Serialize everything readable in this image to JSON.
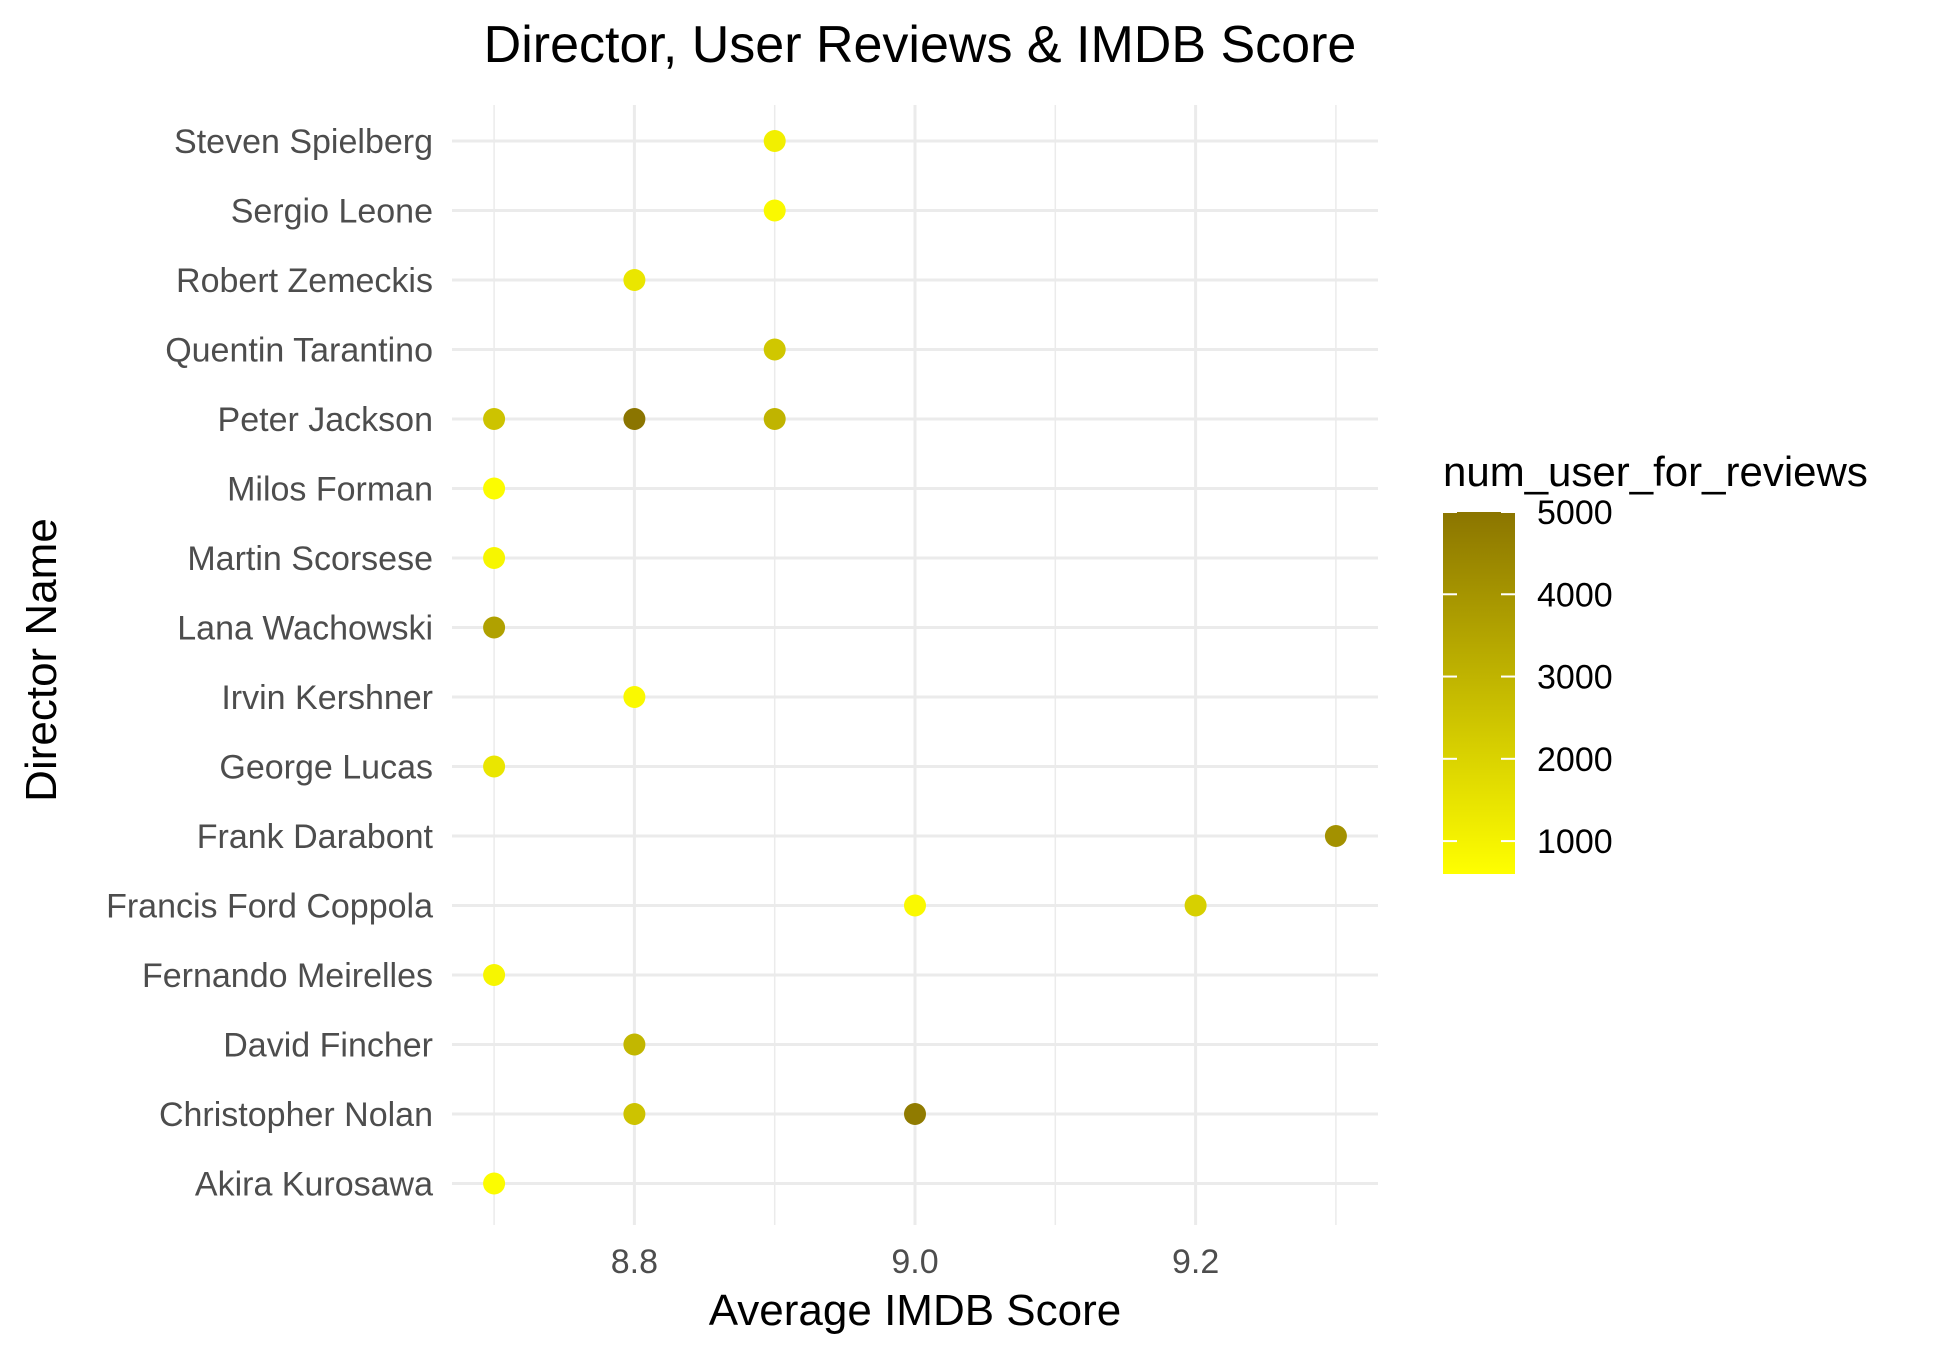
{
  "chart_data": {
    "type": "scatter",
    "title": "Director, User Reviews & IMDB Score",
    "xlabel": "Average IMDB Score",
    "ylabel": "Director Name",
    "xlim": [
      8.67,
      9.33
    ],
    "x_ticks": [
      8.8,
      9.0,
      9.2
    ],
    "x_tick_labels": [
      "8.8",
      "9.0",
      "9.2"
    ],
    "categories": [
      "Akira Kurosawa",
      "Christopher Nolan",
      "David Fincher",
      "Fernando Meirelles",
      "Francis Ford Coppola",
      "Frank Darabont",
      "George Lucas",
      "Irvin Kershner",
      "Lana Wachowski",
      "Martin Scorsese",
      "Milos Forman",
      "Peter Jackson",
      "Quentin Tarantino",
      "Robert Zemeckis",
      "Sergio Leone",
      "Steven Spielberg"
    ],
    "points": [
      {
        "director": "Steven Spielberg",
        "score": 8.9,
        "reviews": 1100
      },
      {
        "director": "Sergio Leone",
        "score": 8.9,
        "reviews": 800
      },
      {
        "director": "Robert Zemeckis",
        "score": 8.8,
        "reviews": 1400
      },
      {
        "director": "Quentin Tarantino",
        "score": 8.9,
        "reviews": 2400
      },
      {
        "director": "Peter Jackson",
        "score": 8.7,
        "reviews": 2500
      },
      {
        "director": "Peter Jackson",
        "score": 8.8,
        "reviews": 5000
      },
      {
        "director": "Peter Jackson",
        "score": 8.9,
        "reviews": 3000
      },
      {
        "director": "Milos Forman",
        "score": 8.7,
        "reviews": 700
      },
      {
        "director": "Martin Scorsese",
        "score": 8.7,
        "reviews": 900
      },
      {
        "director": "Lana Wachowski",
        "score": 8.7,
        "reviews": 3600
      },
      {
        "director": "Irvin Kershner",
        "score": 8.8,
        "reviews": 800
      },
      {
        "director": "George Lucas",
        "score": 8.7,
        "reviews": 1400
      },
      {
        "director": "Frank Darabont",
        "score": 9.3,
        "reviews": 4100
      },
      {
        "director": "Francis Ford Coppola",
        "score": 9.0,
        "reviews": 800
      },
      {
        "director": "Francis Ford Coppola",
        "score": 9.2,
        "reviews": 2100
      },
      {
        "director": "Fernando Meirelles",
        "score": 8.7,
        "reviews": 900
      },
      {
        "director": "David Fincher",
        "score": 8.8,
        "reviews": 2900
      },
      {
        "director": "Christopher Nolan",
        "score": 8.8,
        "reviews": 2500
      },
      {
        "director": "Christopher Nolan",
        "score": 9.0,
        "reviews": 4800
      },
      {
        "director": "Akira Kurosawa",
        "score": 8.7,
        "reviews": 700
      }
    ],
    "legend": {
      "title": "num_user_for_reviews",
      "placement": "right",
      "ticks": [
        1000,
        2000,
        3000,
        4000,
        5000
      ],
      "tick_labels": [
        "1000",
        "2000",
        "3000",
        "4000",
        "5000"
      ],
      "range": [
        600,
        5000
      ],
      "low_color": "#ffff00",
      "high_color": "#8b7500"
    },
    "grid": true
  }
}
